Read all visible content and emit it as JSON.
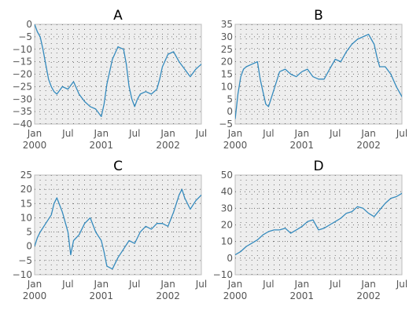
{
  "chart_data": [
    {
      "type": "line",
      "title": "A",
      "color": "#348abd",
      "ylim": [
        -40,
        0
      ],
      "yticks": [
        0,
        -5,
        -10,
        -15,
        -20,
        -25,
        -30,
        -35,
        -40
      ],
      "xlim": [
        0,
        30
      ],
      "xticks": [
        {
          "v": 0,
          "l1": "Jan",
          "l2": "2000"
        },
        {
          "v": 6,
          "l1": "Jul",
          "l2": ""
        },
        {
          "v": 12,
          "l1": "Jan",
          "l2": "2001"
        },
        {
          "v": 18,
          "l1": "Jul",
          "l2": ""
        },
        {
          "v": 24,
          "l1": "Jan",
          "l2": "2002"
        },
        {
          "v": 30,
          "l1": "Jul",
          "l2": ""
        }
      ],
      "x": [
        0,
        0.5,
        1,
        1.5,
        2,
        2.5,
        3,
        3.5,
        4,
        5,
        6,
        7,
        8,
        9,
        10,
        11,
        12,
        12.5,
        13,
        14,
        15,
        16,
        16.5,
        17,
        17.5,
        18,
        18.5,
        19,
        20,
        21,
        22,
        22.5,
        23,
        24,
        25,
        26,
        27,
        28,
        29,
        30,
        31,
        32
      ],
      "values": [
        0,
        -3,
        -5,
        -10,
        -16,
        -22,
        -25,
        -27,
        -28,
        -25,
        -26,
        -23,
        -28,
        -31,
        -33,
        -34,
        -37,
        -32,
        -24,
        -14,
        -9,
        -10,
        -16,
        -25,
        -30,
        -33,
        -30,
        -28,
        -27,
        -28,
        -26,
        -22,
        -17,
        -12,
        -11,
        -15,
        -18,
        -21,
        -18,
        -16,
        -14,
        -21
      ]
    },
    {
      "type": "line",
      "title": "B",
      "color": "#348abd",
      "ylim": [
        -5,
        35
      ],
      "yticks": [
        35,
        30,
        25,
        20,
        15,
        10,
        5,
        0,
        -5
      ],
      "xlim": [
        0,
        30
      ],
      "xticks": [
        {
          "v": 0,
          "l1": "Jan",
          "l2": "2000"
        },
        {
          "v": 6,
          "l1": "Jul",
          "l2": ""
        },
        {
          "v": 12,
          "l1": "Jan",
          "l2": "2001"
        },
        {
          "v": 18,
          "l1": "Jul",
          "l2": ""
        },
        {
          "v": 24,
          "l1": "Jan",
          "l2": "2002"
        },
        {
          "v": 30,
          "l1": "Jul",
          "l2": ""
        }
      ],
      "x": [
        0,
        0.5,
        1,
        1.5,
        2,
        3,
        4,
        4.5,
        5,
        5.5,
        6,
        7,
        8,
        9,
        10,
        11,
        12,
        13,
        14,
        15,
        16,
        17,
        18,
        19,
        20,
        21,
        22,
        23,
        24,
        24.5,
        25,
        25.5,
        26,
        27,
        28,
        29,
        30,
        31,
        32
      ],
      "values": [
        -3,
        7,
        14,
        17,
        18,
        19,
        20,
        13,
        8,
        3,
        2,
        9,
        16,
        17,
        15,
        14,
        16,
        17,
        14,
        13,
        13,
        17,
        21,
        20,
        24,
        27,
        29,
        30,
        31,
        29,
        27,
        22,
        18,
        18,
        15,
        10,
        6,
        4,
        0
      ]
    },
    {
      "type": "line",
      "title": "C",
      "color": "#348abd",
      "ylim": [
        -10,
        25
      ],
      "yticks": [
        25,
        20,
        15,
        10,
        5,
        0,
        -5,
        -10
      ],
      "xlim": [
        0,
        30
      ],
      "xticks": [
        {
          "v": 0,
          "l1": "Jan",
          "l2": "2000"
        },
        {
          "v": 6,
          "l1": "Jul",
          "l2": ""
        },
        {
          "v": 12,
          "l1": "Jan",
          "l2": "2001"
        },
        {
          "v": 18,
          "l1": "Jul",
          "l2": ""
        },
        {
          "v": 24,
          "l1": "Jan",
          "l2": "2002"
        },
        {
          "v": 30,
          "l1": "Jul",
          "l2": ""
        }
      ],
      "x": [
        0,
        0.5,
        1,
        2,
        3,
        3.5,
        4,
        5,
        6,
        6.5,
        7,
        8,
        9,
        10,
        11,
        12,
        12.5,
        13,
        14,
        15,
        16,
        17,
        18,
        19,
        20,
        21,
        22,
        23,
        24,
        25,
        26,
        26.5,
        27,
        28,
        29,
        30,
        31,
        31.5,
        32
      ],
      "values": [
        0,
        3,
        5,
        8,
        11,
        15,
        17,
        12,
        5,
        -3,
        2,
        4,
        8,
        10,
        5,
        2,
        -2,
        -7,
        -8,
        -4,
        -1,
        2,
        1,
        5,
        7,
        6,
        8,
        8,
        7,
        12,
        18,
        20,
        17,
        13,
        16,
        18,
        16,
        5,
        2
      ]
    },
    {
      "type": "line",
      "title": "D",
      "color": "#348abd",
      "ylim": [
        -10,
        50
      ],
      "yticks": [
        50,
        40,
        30,
        20,
        10,
        0,
        -10
      ],
      "xlim": [
        0,
        30
      ],
      "xticks": [
        {
          "v": 0,
          "l1": "Jan",
          "l2": "2000"
        },
        {
          "v": 6,
          "l1": "Jul",
          "l2": ""
        },
        {
          "v": 12,
          "l1": "Jan",
          "l2": "2001"
        },
        {
          "v": 18,
          "l1": "Jul",
          "l2": ""
        },
        {
          "v": 24,
          "l1": "Jan",
          "l2": "2002"
        },
        {
          "v": 30,
          "l1": "Jul",
          "l2": ""
        }
      ],
      "x": [
        0,
        1,
        2,
        3,
        4,
        5,
        6,
        7,
        8,
        9,
        10,
        11,
        12,
        13,
        14,
        15,
        16,
        17,
        18,
        19,
        20,
        21,
        22,
        23,
        24,
        25,
        26,
        27,
        28,
        29,
        30,
        31,
        32
      ],
      "values": [
        2,
        4,
        7,
        9,
        11,
        14,
        16,
        17,
        17,
        18,
        15,
        17,
        19,
        22,
        23,
        17,
        18,
        20,
        22,
        24,
        27,
        28,
        31,
        30,
        27,
        25,
        29,
        33,
        36,
        37,
        39,
        42,
        41
      ]
    }
  ]
}
